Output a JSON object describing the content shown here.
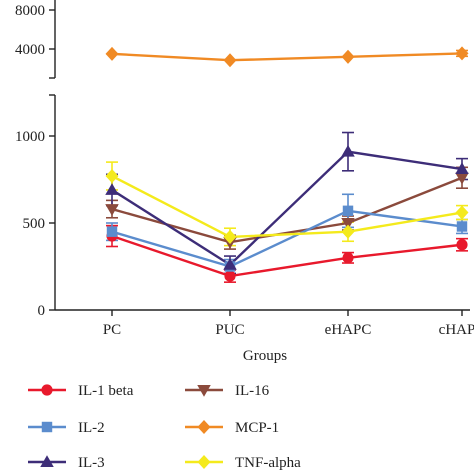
{
  "chart_data": {
    "type": "line",
    "xlabel": "Groups",
    "ylabel": "",
    "categories": [
      "PC",
      "PUC",
      "eHAPC",
      "cHAPC"
    ],
    "axis": {
      "broken": true,
      "lower_range": [
        0,
        1100
      ],
      "lower_ticks": [
        0,
        500,
        1000
      ],
      "upper_range": [
        2700,
        8000
      ],
      "upper_ticks": [
        4000,
        8000
      ],
      "grid": false
    },
    "legend_position": "bottom",
    "series": [
      {
        "name": "IL-1 beta",
        "color": "#e8192c",
        "marker": "circle",
        "values": [
          425,
          195,
          300,
          375
        ],
        "errors": [
          60,
          35,
          30,
          35
        ]
      },
      {
        "name": "IL-16",
        "color": "#8b4a3c",
        "marker": "triangle-down",
        "values": [
          580,
          390,
          500,
          760
        ],
        "errors": [
          50,
          40,
          40,
          60
        ]
      },
      {
        "name": "IL-2",
        "color": "#5b8ccd",
        "marker": "square",
        "values": [
          450,
          250,
          570,
          480
        ],
        "errors": [
          50,
          40,
          95,
          40
        ]
      },
      {
        "name": "MCP-1",
        "color": "#f08a24",
        "marker": "diamond",
        "values": [
          3500,
          2850,
          3200,
          3550
        ],
        "errors": [
          0,
          0,
          0,
          300
        ]
      },
      {
        "name": "IL-3",
        "color": "#3d2d78",
        "marker": "triangle-up",
        "values": [
          690,
          260,
          910,
          810
        ],
        "errors": [
          90,
          50,
          110,
          60
        ]
      },
      {
        "name": "TNF-alpha",
        "color": "#f4ea1c",
        "marker": "diamond",
        "values": [
          770,
          420,
          450,
          560
        ],
        "errors": [
          80,
          50,
          55,
          40
        ]
      }
    ]
  }
}
